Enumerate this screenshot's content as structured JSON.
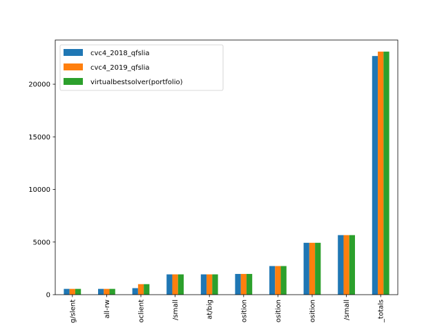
{
  "chart_data": {
    "type": "bar",
    "categories": [
      "g/slent",
      "all-rw",
      "oclient",
      "/small",
      "at/big",
      "osition",
      "osition",
      "osition",
      "/small",
      "_totals"
    ],
    "series": [
      {
        "name": "cvc4_2018_qfslia",
        "color": "#1f77b4",
        "values": [
          550,
          550,
          620,
          1930,
          1930,
          1970,
          2720,
          4930,
          5660,
          22680
        ]
      },
      {
        "name": "cvc4_2019_qfslia",
        "color": "#ff7f0e",
        "values": [
          550,
          550,
          1000,
          1930,
          1930,
          1970,
          2720,
          4930,
          5660,
          23100
        ]
      },
      {
        "name": "virtualbestsolver(portfolio)",
        "color": "#2ca02c",
        "values": [
          550,
          550,
          1000,
          1930,
          1930,
          1970,
          2720,
          4930,
          5660,
          23100
        ]
      }
    ],
    "y_ticks": [
      0,
      5000,
      10000,
      15000,
      20000
    ],
    "ylim": [
      0,
      24200
    ],
    "title": "",
    "xlabel": "",
    "ylabel": "",
    "grid": false,
    "legend_position": "top-left"
  }
}
